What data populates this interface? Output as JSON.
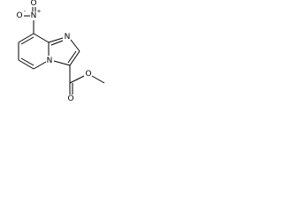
{
  "atoms": [
    {
      "symbol": "O",
      "charge": "-"
    },
    {
      "symbol": "N",
      "charge": "+"
    },
    {
      "symbol": "O"
    },
    {
      "symbol": "N"
    },
    {
      "symbol": "N"
    },
    {
      "symbol": "O"
    },
    {
      "symbol": "O"
    }
  ]
}
